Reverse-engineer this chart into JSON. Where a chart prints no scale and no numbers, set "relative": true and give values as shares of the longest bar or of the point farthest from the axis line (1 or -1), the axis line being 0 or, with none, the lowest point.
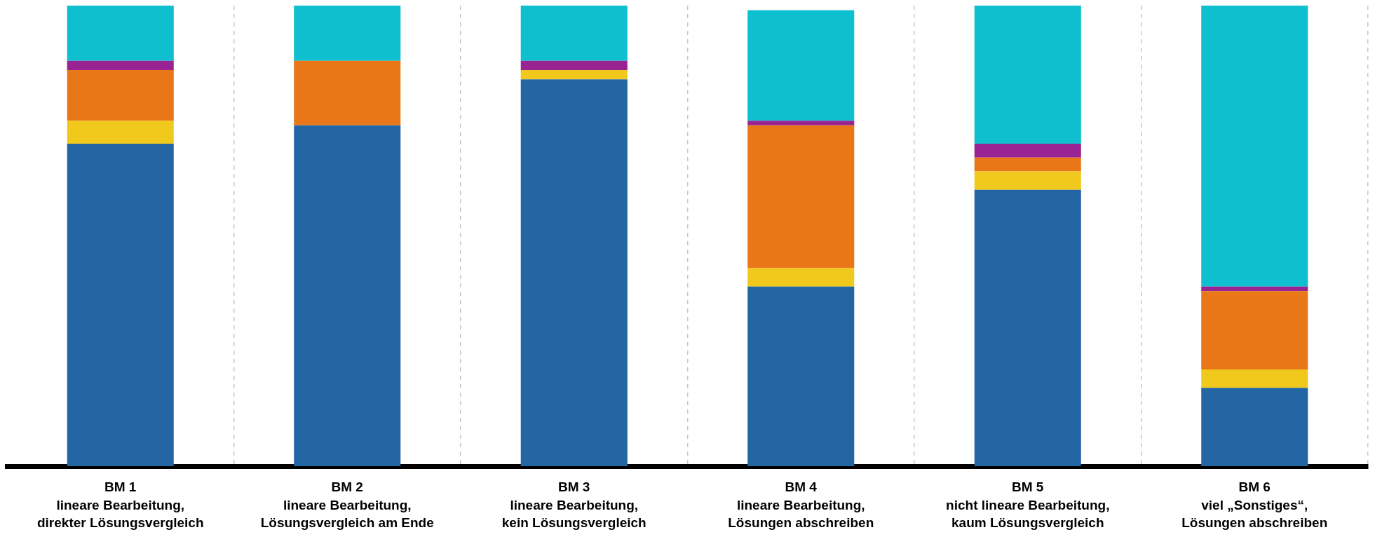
{
  "chart_data": {
    "type": "bar",
    "stacked": true,
    "relative": true,
    "grid": "x",
    "legend": false,
    "categories": [
      "BM 1\nlineare Bearbeitung,\ndirekter Lösungsvergleich",
      "BM 2\nlineare Bearbeitung,\nLösungsvergleich am Ende",
      "BM 3\nlineare Bearbeitung,\nkein Lösungsvergleich",
      "BM 4\nlineare Bearbeitung,\nLösungen abschreiben",
      "BM 5\nnicht lineare Bearbeitung,\nkaum Lösungsvergleich",
      "BM 6\nviel „Sonstiges“,\nLösungen abschreiben"
    ],
    "series": [
      {
        "color": "#2366a3",
        "values": [
          0.7,
          0.74,
          0.84,
          0.39,
          0.6,
          0.17
        ]
      },
      {
        "color": "#f0c91c",
        "values": [
          0.05,
          0,
          0.02,
          0.04,
          0.04,
          0.04
        ]
      },
      {
        "color": "#ea7717",
        "values": [
          0.11,
          0.14,
          0,
          0.31,
          0.03,
          0.17
        ]
      },
      {
        "color": "#9a2393",
        "values": [
          0.02,
          0,
          0.02,
          0.01,
          0.03,
          0.01
        ]
      },
      {
        "color": "#0dbfcf",
        "values": [
          0.12,
          0.12,
          0.12,
          0.24,
          0.3,
          0.61
        ]
      }
    ]
  }
}
